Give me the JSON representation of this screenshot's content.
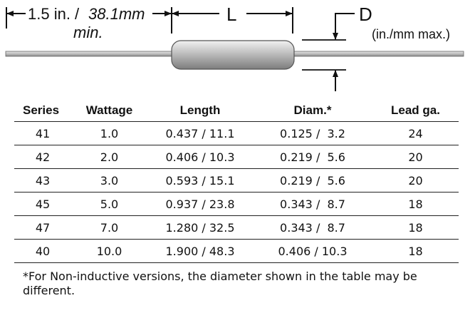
{
  "dimensions": {
    "lead_length_in": "1.5 in. /",
    "lead_length_mm": "38.1mm",
    "lead_length_note": "min.",
    "body_length_label": "L",
    "diameter_label": "D",
    "diameter_units": "(in./mm max.)"
  },
  "table": {
    "headers": [
      "Series",
      "Wattage",
      "Length",
      "Diam.*",
      "Lead ga."
    ],
    "rows": [
      [
        "41",
        "1.0",
        "0.437 / 11.1",
        "0.125 /  3.2",
        "24"
      ],
      [
        "42",
        "2.0",
        "0.406 / 10.3",
        "0.219 /  5.6",
        "20"
      ],
      [
        "43",
        "3.0",
        "0.593 / 15.1",
        "0.219 /  5.6",
        "20"
      ],
      [
        "45",
        "5.0",
        "0.937 / 23.8",
        "0.343 /  8.7",
        "18"
      ],
      [
        "47",
        "7.0",
        "1.280 / 32.5",
        "0.343 /  8.7",
        "18"
      ],
      [
        "40",
        "10.0",
        "1.900 / 48.3",
        "0.406 / 10.3",
        "18"
      ]
    ]
  },
  "footnote": "*For Non-inductive versions, the diameter shown in the table may be different."
}
